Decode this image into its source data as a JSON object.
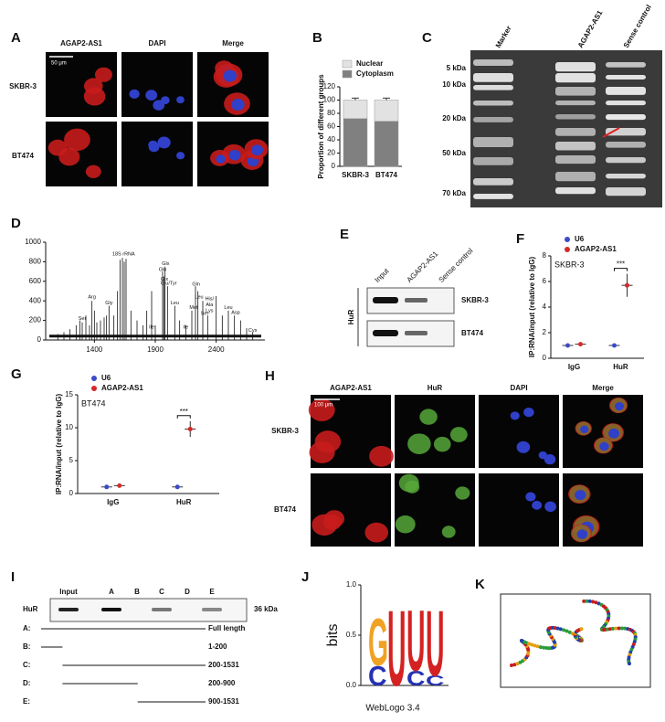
{
  "panels": {
    "A": {
      "label": "A",
      "columns": [
        "AGAP2-AS1",
        "DAPI",
        "Merge"
      ],
      "rows": [
        "SKBR-3",
        "BT474"
      ],
      "scale_bar": "50 μm"
    },
    "C": {
      "label": "C",
      "lanes": [
        "Marker",
        "AGAP2-AS1",
        "Sense control"
      ],
      "markers": [
        "5 kDa",
        "10 kDa",
        "20 kDa",
        "50 kDa",
        "70 kDa"
      ]
    },
    "E": {
      "label": "E",
      "lanes": [
        "Input",
        "AGAP2-AS1",
        "Sense control"
      ],
      "rows": [
        "SKBR-3",
        "BT474"
      ],
      "protein": "HuR"
    },
    "H": {
      "label": "H",
      "columns": [
        "AGAP2-AS1",
        "HuR",
        "DAPI",
        "Merge"
      ],
      "rows": [
        "SKBR-3",
        "BT474"
      ],
      "scale_bar": "100 μm"
    },
    "I": {
      "label": "I",
      "lanes": [
        "Input",
        "A",
        "B",
        "C",
        "D",
        "E"
      ],
      "protein": "HuR",
      "size": "36 kDa",
      "constructs": [
        {
          "name": "A:",
          "range": "Full length",
          "start": 1,
          "end": 1531
        },
        {
          "name": "B:",
          "range": "1-200",
          "start": 1,
          "end": 200
        },
        {
          "name": "C:",
          "range": "200-1531",
          "start": 200,
          "end": 1531
        },
        {
          "name": "D:",
          "range": "200-900",
          "start": 200,
          "end": 900
        },
        {
          "name": "E:",
          "range": "900-1531",
          "start": 900,
          "end": 1531
        }
      ]
    },
    "K": {
      "label": "K"
    }
  },
  "chart_data": [
    {
      "type": "stacked_bar",
      "panel_label": "B",
      "y_label": "Proportion of different groups",
      "categories": [
        "SKBR-3",
        "BT474"
      ],
      "series": [
        {
          "name": "Cytoplasm",
          "color": "#808080",
          "values": [
            72,
            68
          ],
          "errors": [
            6,
            6
          ]
        },
        {
          "name": "Nuclear",
          "color": "#e2e2e2",
          "values": [
            28,
            32
          ],
          "errors": [
            3,
            3
          ]
        }
      ],
      "ylim": [
        0,
        120
      ],
      "yticks": [
        0,
        20,
        40,
        60,
        80,
        100,
        120
      ]
    },
    {
      "type": "spectrum",
      "panel_label": "D",
      "x": [
        1100,
        1150,
        1200,
        1250,
        1280,
        1300,
        1330,
        1360,
        1380,
        1400,
        1420,
        1450,
        1480,
        1500,
        1520,
        1560,
        1590,
        1610,
        1630,
        1645,
        1660,
        1700,
        1750,
        1800,
        1830,
        1870,
        1900,
        1960,
        1970,
        1980,
        2000,
        2060,
        2100,
        2150,
        2200,
        2230,
        2250,
        2290,
        2330,
        2400,
        2450,
        2500,
        2550,
        2600,
        2650,
        2700
      ],
      "values": [
        60,
        80,
        110,
        150,
        200,
        180,
        250,
        150,
        400,
        300,
        180,
        200,
        230,
        250,
        350,
        250,
        500,
        820,
        840,
        800,
        830,
        300,
        200,
        150,
        300,
        500,
        150,
        700,
        650,
        750,
        550,
        350,
        200,
        150,
        300,
        550,
        500,
        400,
        250,
        450,
        250,
        300,
        250,
        200,
        120,
        80
      ],
      "color": "#111111",
      "annotations": [
        {
          "text": "Arg",
          "x": 1380,
          "y": 440
        },
        {
          "text": "Ser",
          "x": 1300,
          "y": 220
        },
        {
          "text": "Gly",
          "x": 1520,
          "y": 380
        },
        {
          "text": "18S rRNA",
          "x": 1640,
          "y": 880
        },
        {
          "text": "Glx",
          "x": 1985,
          "y": 780
        },
        {
          "text": "Gln",
          "x": 1960,
          "y": 720
        },
        {
          "text": "Glu/Tyr",
          "x": 2010,
          "y": 580
        },
        {
          "text": "Glx",
          "x": 1975,
          "y": 620
        },
        {
          "text": "Leu",
          "x": 2060,
          "y": 380
        },
        {
          "text": "Ile",
          "x": 1870,
          "y": 130
        },
        {
          "text": "Ile",
          "x": 2150,
          "y": 130
        },
        {
          "text": "Gln",
          "x": 2235,
          "y": 570
        },
        {
          "text": "Met",
          "x": 2215,
          "y": 330
        },
        {
          "text": "Leu",
          "x": 2260,
          "y": 440
        },
        {
          "text": "Ser",
          "x": 2305,
          "y": 270
        },
        {
          "text": "His/",
          "x": 2345,
          "y": 420
        },
        {
          "text": "Ala",
          "x": 2345,
          "y": 360
        },
        {
          "text": "Lys",
          "x": 2345,
          "y": 300
        },
        {
          "text": "Leu",
          "x": 2500,
          "y": 330
        },
        {
          "text": "Asp",
          "x": 2560,
          "y": 280
        },
        {
          "text": "Cys",
          "x": 2700,
          "y": 100
        }
      ],
      "xlim": [
        1000,
        2800
      ],
      "xticks": [
        1400,
        1900,
        2400
      ],
      "ylim": [
        0,
        1000
      ],
      "yticks": [
        0,
        200,
        400,
        600,
        800,
        1000
      ]
    },
    {
      "type": "dot",
      "panel_label": "F",
      "title": "SKBR-3",
      "y_label": "IP:RNA/input (relative to IgG)",
      "categories": [
        "IgG",
        "HuR"
      ],
      "series": [
        {
          "name": "U6",
          "color": "#3b4bc8",
          "values": [
            1.0,
            1.0
          ],
          "errors": [
            0.1,
            0.1
          ]
        },
        {
          "name": "AGAP2-AS1",
          "color": "#d42a2a",
          "values": [
            1.1,
            5.7
          ],
          "errors": [
            0.15,
            0.9
          ]
        }
      ],
      "significance": "***",
      "ylim": [
        0,
        8
      ],
      "yticks": [
        0,
        2,
        4,
        6,
        8
      ]
    },
    {
      "type": "dot",
      "panel_label": "G",
      "title": "BT474",
      "y_label": "IP:RNA/input (relative to IgG)",
      "categories": [
        "IgG",
        "HuR"
      ],
      "series": [
        {
          "name": "U6",
          "color": "#3b4bc8",
          "values": [
            1.0,
            1.0
          ],
          "errors": [
            0.1,
            0.15
          ]
        },
        {
          "name": "AGAP2-AS1",
          "color": "#d42a2a",
          "values": [
            1.2,
            9.8
          ],
          "errors": [
            0.15,
            1.2
          ]
        }
      ],
      "significance": "***",
      "ylim": [
        0,
        15
      ],
      "yticks": [
        0,
        5,
        10,
        15
      ]
    },
    {
      "type": "logo",
      "panel_label": "J",
      "y_label": "bits",
      "footer": "WebLogo 3.4",
      "positions": [
        {
          "letters": [
            {
              "letter": "C",
              "color": "#2532b4",
              "height": 0.2
            },
            {
              "letter": "G",
              "color": "#f0a224",
              "height": 0.48
            }
          ]
        },
        {
          "letters": [
            {
              "letter": "U",
              "color": "#d42222",
              "height": 0.77
            }
          ]
        },
        {
          "letters": [
            {
              "letter": "C",
              "color": "#2532b4",
              "height": 0.15
            },
            {
              "letter": "U",
              "color": "#d42222",
              "height": 0.62
            }
          ]
        },
        {
          "letters": [
            {
              "letter": "C",
              "color": "#2532b4",
              "height": 0.1
            },
            {
              "letter": "U",
              "color": "#d42222",
              "height": 0.67
            }
          ]
        }
      ],
      "ylim": [
        0,
        1
      ],
      "yticks": [
        {
          "value": 0,
          "label": "0.0"
        },
        {
          "value": 0.5,
          "label": "0.5"
        },
        {
          "value": 1,
          "label": "1.0"
        }
      ]
    }
  ]
}
